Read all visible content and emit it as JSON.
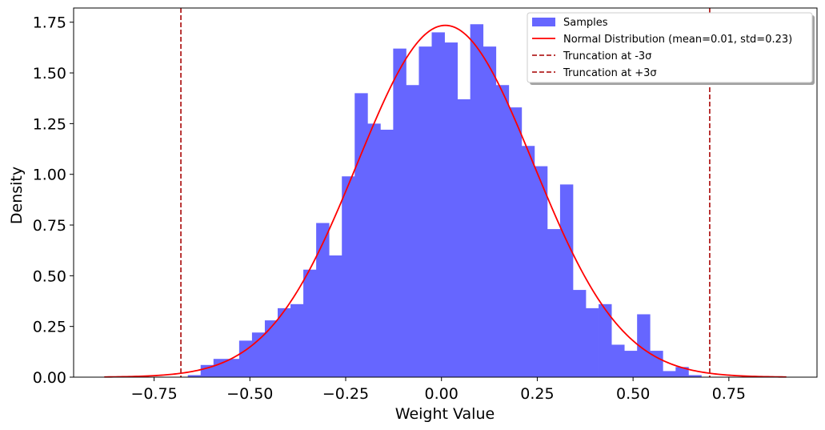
{
  "chart_data": {
    "type": "bar",
    "xlabel": "Weight Value",
    "ylabel": "Density",
    "xlim": [
      -0.96,
      0.98
    ],
    "ylim": [
      0,
      1.82
    ],
    "xticks": [
      -0.75,
      -0.5,
      -0.25,
      0.0,
      0.25,
      0.5,
      0.75
    ],
    "xtick_labels": [
      "−0.75",
      "−0.50",
      "−0.25",
      "0.00",
      "0.25",
      "0.50",
      "0.75"
    ],
    "yticks": [
      0,
      0.25,
      0.5,
      0.75,
      1.0,
      1.25,
      1.5,
      1.75
    ],
    "ytick_labels": [
      "0.00",
      "0.25",
      "0.50",
      "0.75",
      "1.00",
      "1.25",
      "1.50",
      "1.75"
    ],
    "grid": false,
    "legend_position": "top-right",
    "histogram": {
      "name": "Samples",
      "color": "#6666ff",
      "bin_start": -0.662,
      "bin_width": 0.0335,
      "densities": [
        0.01,
        0.06,
        0.09,
        0.09,
        0.18,
        0.22,
        0.28,
        0.34,
        0.36,
        0.53,
        0.76,
        0.6,
        0.99,
        1.4,
        1.25,
        1.22,
        1.62,
        1.44,
        1.63,
        1.7,
        1.65,
        1.37,
        1.74,
        1.63,
        1.44,
        1.33,
        1.14,
        1.04,
        0.73,
        0.95,
        0.43,
        0.34,
        0.36,
        0.16,
        0.13,
        0.31,
        0.13,
        0.03,
        0.05,
        0.01
      ]
    },
    "normal_curve": {
      "name": "Normal Distribution (mean=0.01, std=0.23)",
      "color": "#ff0000",
      "mean": 0.01,
      "std": 0.23,
      "x_range": [
        -0.88,
        0.9
      ]
    },
    "truncation_lines": [
      {
        "name": "Truncation at -3σ",
        "x": -0.68,
        "color": "#b22222"
      },
      {
        "name": "Truncation at +3σ",
        "x": 0.7,
        "color": "#b22222"
      }
    ]
  }
}
